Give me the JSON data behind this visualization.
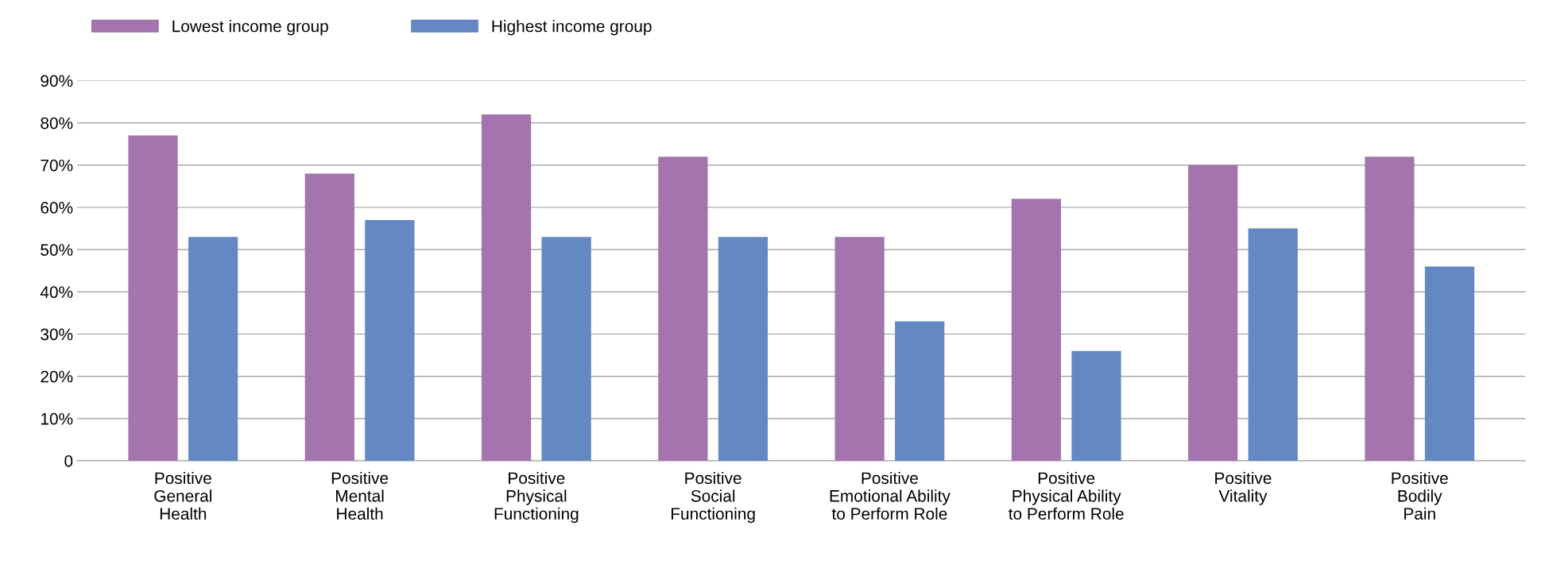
{
  "chart_data": {
    "type": "bar",
    "categories": [
      "Positive\nGeneral\nHealth",
      "Positive\nMental\nHealth",
      "Positive\nPhysical\nFunctioning",
      "Positive\nSocial\nFunctioning",
      "Positive\nEmotional Ability\nto Perform Role",
      "Positive\nPhysical Ability\nto Perform Role",
      "Positive\nVitality",
      "Positive\nBodily\nPain"
    ],
    "series": [
      {
        "name": "Lowest income group",
        "color": "#a474ae",
        "values": [
          77,
          68,
          82,
          72,
          53,
          62,
          70,
          72
        ]
      },
      {
        "name": "Highest income group",
        "color": "#6388c2",
        "values": [
          53,
          57,
          53,
          53,
          33,
          26,
          55,
          46
        ]
      }
    ],
    "ylim": [
      0,
      90
    ],
    "yticks": [
      0,
      {
        "value": 10,
        "label": "10%"
      },
      {
        "value": 20,
        "label": "20%"
      },
      {
        "value": 30,
        "label": "30%"
      },
      {
        "value": 40,
        "label": "40%"
      },
      {
        "value": 50,
        "label": "50%"
      },
      {
        "value": 60,
        "label": "60%"
      },
      {
        "value": 70,
        "label": "70%"
      },
      {
        "value": 80,
        "label": "80%"
      },
      {
        "value": 90,
        "label": "90%"
      }
    ],
    "grid": "y",
    "legend": "top left"
  }
}
